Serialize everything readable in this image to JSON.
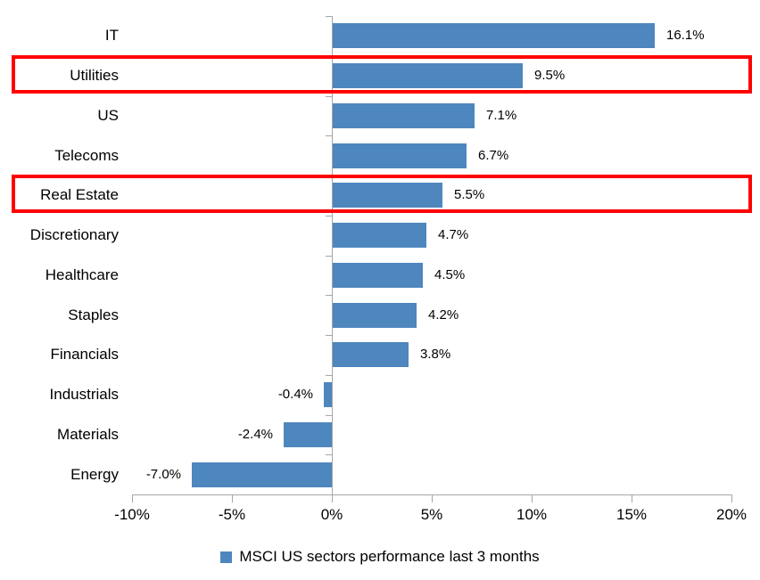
{
  "chart_data": {
    "type": "bar",
    "orientation": "horizontal",
    "title": "",
    "categories": [
      "IT",
      "Utilities",
      "US",
      "Telecoms",
      "Real Estate",
      "Discretionary",
      "Healthcare",
      "Staples",
      "Financials",
      "Industrials",
      "Materials",
      "Energy"
    ],
    "series": [
      {
        "name": "MSCI US sectors performance last 3 months",
        "values": [
          16.1,
          9.5,
          7.1,
          6.7,
          5.5,
          4.7,
          4.5,
          4.2,
          3.8,
          -0.4,
          -2.4,
          -7.0
        ],
        "data_labels": [
          "16.1%",
          "9.5%",
          "7.1%",
          "6.7%",
          "5.5%",
          "4.7%",
          "4.5%",
          "4.2%",
          "3.8%",
          "-0.4%",
          "-2.4%",
          "-7.0%"
        ]
      }
    ],
    "xlim": [
      -10,
      20
    ],
    "x_ticks": [
      {
        "value": -10,
        "label": "-10%"
      },
      {
        "value": -5,
        "label": "-5%"
      },
      {
        "value": 0,
        "label": "0%"
      },
      {
        "value": 5,
        "label": "5%"
      },
      {
        "value": 10,
        "label": "10%"
      },
      {
        "value": 15,
        "label": "15%"
      },
      {
        "value": 20,
        "label": "20%"
      }
    ],
    "grid": false,
    "legend_position": "bottom",
    "highlighted_categories": [
      "Utilities",
      "Real Estate"
    ],
    "colors": {
      "bar": "#4E86BE",
      "highlight_box": "#FE0000",
      "axis": "#A6A6A6",
      "text": "#000000"
    }
  }
}
